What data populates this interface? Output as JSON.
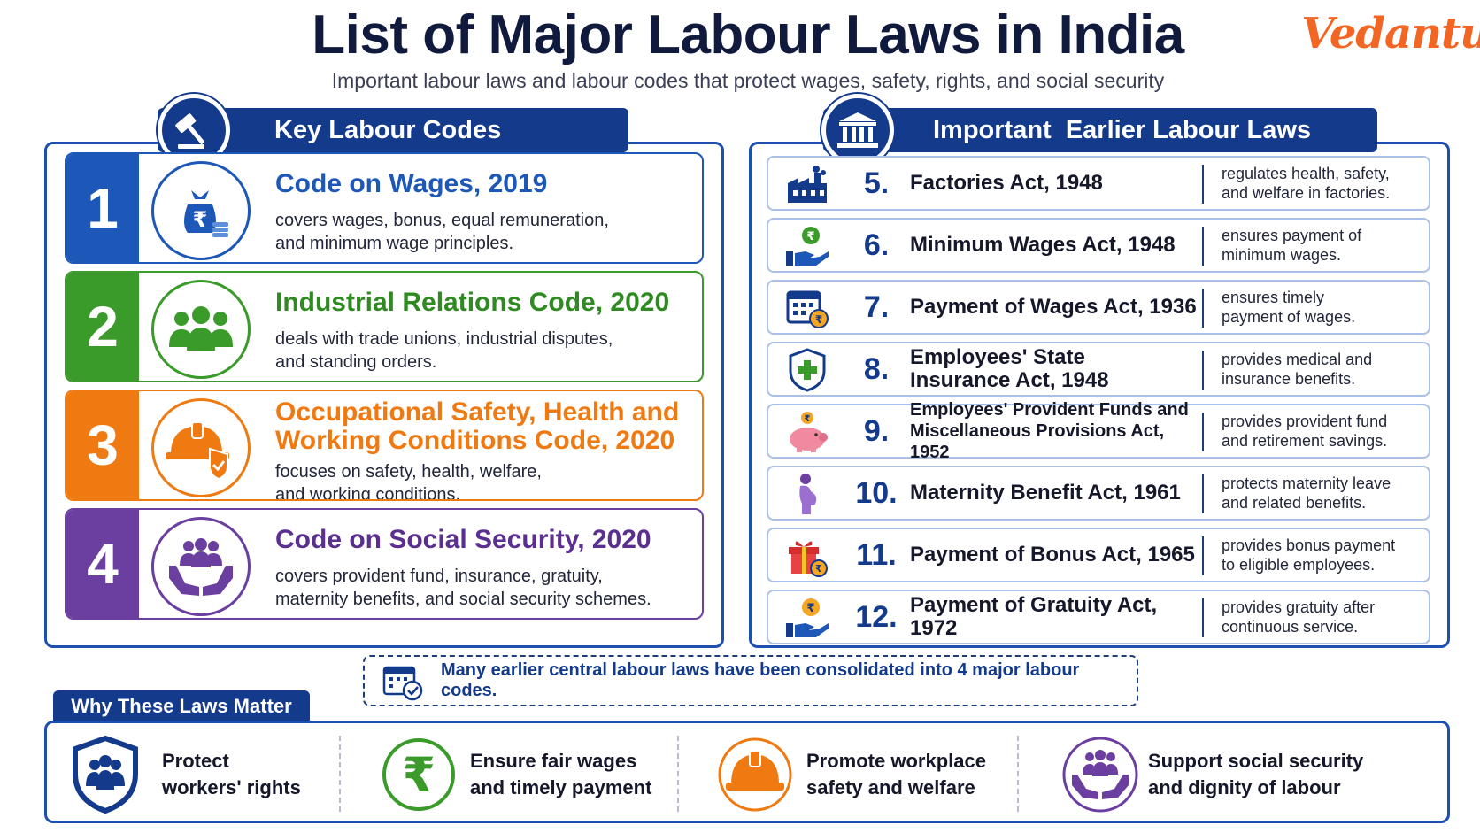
{
  "title": "List of Major Labour Laws in India",
  "subtitle": "Important labour laws and labour codes that protect wages, safety, rights, and social security",
  "logo": "Vedantu",
  "left_header": {
    "label": "Key Labour Codes",
    "icon": "gavel-icon"
  },
  "right_header": {
    "label": "Important  Earlier Labour Laws",
    "icon": "courthouse-icon"
  },
  "codes": [
    {
      "number": "1",
      "title": "Code on Wages, 2019",
      "desc_1": "covers wages, bonus, equal remuneration,",
      "desc_2": "and minimum wage principles.",
      "color": "#1d57b8",
      "icon": "money-bag-icon"
    },
    {
      "number": "2",
      "title": "Industrial Relations Code, 2020",
      "desc_1": "deals with trade unions, industrial disputes,",
      "desc_2": "and standing orders.",
      "color": "#3a9a2a",
      "icon": "group-icon"
    },
    {
      "number": "3",
      "title_1": "Occupational Safety, Health and",
      "title_2": "Working Conditions Code, 2020",
      "desc_1": "focuses on safety, health, welfare,",
      "desc_2": "and working conditions.",
      "color": "#f07a12",
      "icon": "helmet-shield-icon"
    },
    {
      "number": "4",
      "title": "Code on Social Security, 2020",
      "desc_1": "covers provident fund, insurance, gratuity,",
      "desc_2": "maternity benefits, and social security schemes.",
      "color": "#6b3fa0",
      "icon": "hands-people-icon"
    }
  ],
  "laws": [
    {
      "number": "5.",
      "name": "Factories Act, 1948",
      "desc_1": "regulates health, safety,",
      "desc_2": "and welfare in factories.",
      "icon": "factory-icon"
    },
    {
      "number": "6.",
      "name": "Minimum Wages Act, 1948",
      "desc_1": "ensures payment of",
      "desc_2": "minimum wages.",
      "icon": "hand-coin-icon"
    },
    {
      "number": "7.",
      "name": "Payment of Wages Act, 1936",
      "desc_1": "ensures timely",
      "desc_2": "payment of wages.",
      "icon": "calendar-coin-icon"
    },
    {
      "number": "8.",
      "name_1": "Employees' State",
      "name_2": "Insurance Act, 1948",
      "desc_1": "provides medical and",
      "desc_2": "insurance benefits.",
      "icon": "medical-shield-icon"
    },
    {
      "number": "9.",
      "name_1": "Employees' Provident Funds and",
      "name_2": "Miscellaneous Provisions Act, 1952",
      "desc_1": "provides provident fund",
      "desc_2": "and retirement savings.",
      "icon": "piggy-bank-icon"
    },
    {
      "number": "10.",
      "name": "Maternity Benefit Act, 1961",
      "desc_1": "protects maternity leave",
      "desc_2": "and related benefits.",
      "icon": "pregnant-woman-icon"
    },
    {
      "number": "11.",
      "name": "Payment of Bonus Act, 1965",
      "desc_1": "provides bonus payment",
      "desc_2": "to eligible employees.",
      "icon": "gift-coin-icon"
    },
    {
      "number": "12.",
      "name": "Payment of Gratuity Act, 1972",
      "desc_1": "provides gratuity after",
      "desc_2": "continuous service.",
      "icon": "hand-coin-icon"
    }
  ],
  "note": "Many earlier central labour laws have been consolidated into 4 major labour codes.",
  "why": {
    "label": "Why These Laws Matter",
    "items": [
      {
        "line_1": "Protect",
        "line_2": "workers' rights",
        "icon": "shield-people-icon"
      },
      {
        "line_1": "Ensure fair wages",
        "line_2": "and timely payment",
        "icon": "rupee-icon"
      },
      {
        "line_1": "Promote workplace",
        "line_2": "safety and welfare",
        "icon": "helmet-icon"
      },
      {
        "line_1": "Support social security",
        "line_2": "and dignity of labour",
        "icon": "hands-people-icon"
      }
    ]
  },
  "colors": {
    "navy": "#143a8c",
    "blue": "#1d57b8",
    "green": "#3a9a2a",
    "orange": "#f07a12",
    "purple": "#6b3fa0",
    "brand": "#f26522"
  }
}
